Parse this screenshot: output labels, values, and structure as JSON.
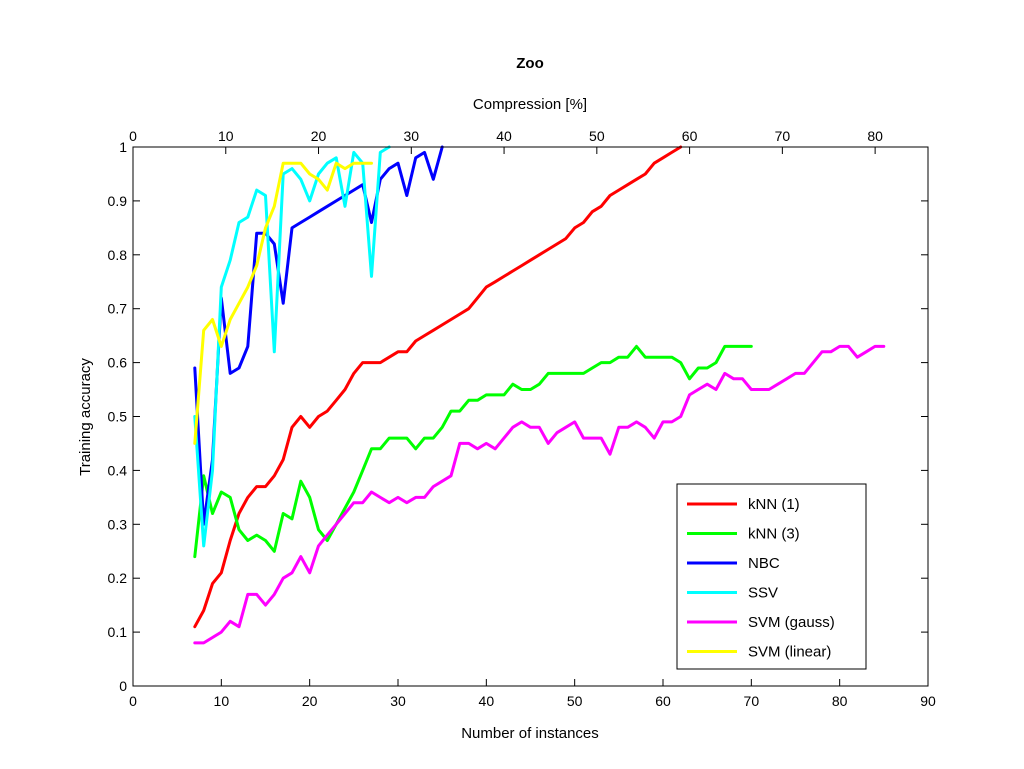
{
  "chart_data": {
    "type": "line",
    "title": "Zoo",
    "xlabel": "Number of instances",
    "ylabel": "Training accuracy",
    "x2label": "Compression [%]",
    "xlim": [
      0,
      90
    ],
    "ylim": [
      0,
      1
    ],
    "x2lim": [
      0,
      85.7
    ],
    "xticks": [
      0,
      10,
      20,
      30,
      40,
      50,
      60,
      70,
      80,
      90
    ],
    "yticks": [
      0,
      0.1,
      0.2,
      0.3,
      0.4,
      0.5,
      0.6,
      0.7,
      0.8,
      0.9,
      1
    ],
    "x2ticks": [
      0,
      10,
      20,
      30,
      40,
      50,
      60,
      70,
      80
    ],
    "grid": false,
    "legend_position": "bottom-right",
    "series": [
      {
        "name": "kNN (1)",
        "color": "#ff0000",
        "x": [
          7,
          8,
          9,
          10,
          11,
          12,
          13,
          14,
          15,
          16,
          17,
          18,
          19,
          20,
          21,
          22,
          23,
          24,
          25,
          26,
          27,
          28,
          29,
          30,
          31,
          32,
          33,
          34,
          35,
          36,
          37,
          38,
          39,
          40,
          41,
          42,
          43,
          44,
          45,
          46,
          47,
          48,
          49,
          50,
          51,
          52,
          53,
          54,
          55,
          56,
          57,
          58,
          59,
          60,
          61,
          62
        ],
        "y": [
          0.11,
          0.14,
          0.19,
          0.21,
          0.27,
          0.32,
          0.35,
          0.37,
          0.37,
          0.39,
          0.42,
          0.48,
          0.5,
          0.48,
          0.5,
          0.51,
          0.53,
          0.55,
          0.58,
          0.6,
          0.6,
          0.6,
          0.61,
          0.62,
          0.62,
          0.64,
          0.65,
          0.66,
          0.67,
          0.68,
          0.69,
          0.7,
          0.72,
          0.74,
          0.75,
          0.76,
          0.77,
          0.78,
          0.79,
          0.8,
          0.81,
          0.82,
          0.83,
          0.85,
          0.86,
          0.88,
          0.89,
          0.91,
          0.92,
          0.93,
          0.94,
          0.95,
          0.97,
          0.98,
          0.99,
          1.0
        ]
      },
      {
        "name": "kNN (3)",
        "color": "#00ff00",
        "x": [
          7,
          8,
          9,
          10,
          11,
          12,
          13,
          14,
          15,
          16,
          17,
          18,
          19,
          20,
          21,
          22,
          23,
          24,
          25,
          26,
          27,
          28,
          29,
          30,
          31,
          32,
          33,
          34,
          35,
          36,
          37,
          38,
          39,
          40,
          41,
          42,
          43,
          44,
          45,
          46,
          47,
          48,
          49,
          50,
          51,
          52,
          53,
          54,
          55,
          56,
          57,
          58,
          59,
          60,
          61,
          62,
          63,
          64,
          65,
          66,
          67,
          68,
          69,
          70
        ],
        "y": [
          0.24,
          0.39,
          0.32,
          0.36,
          0.35,
          0.29,
          0.27,
          0.28,
          0.27,
          0.25,
          0.32,
          0.31,
          0.38,
          0.35,
          0.29,
          0.27,
          0.3,
          0.33,
          0.36,
          0.4,
          0.44,
          0.44,
          0.46,
          0.46,
          0.46,
          0.44,
          0.46,
          0.46,
          0.48,
          0.51,
          0.51,
          0.53,
          0.53,
          0.54,
          0.54,
          0.54,
          0.56,
          0.55,
          0.55,
          0.56,
          0.58,
          0.58,
          0.58,
          0.58,
          0.58,
          0.59,
          0.6,
          0.6,
          0.61,
          0.61,
          0.63,
          0.61,
          0.61,
          0.61,
          0.61,
          0.6,
          0.57,
          0.59,
          0.59,
          0.6,
          0.63,
          0.63,
          0.63,
          0.63
        ]
      },
      {
        "name": "NBC",
        "color": "#0000ff",
        "x": [
          7,
          8,
          9,
          10,
          11,
          12,
          13,
          14,
          15,
          16,
          17,
          18,
          19,
          20,
          21,
          22,
          23,
          24,
          25,
          26,
          27,
          28,
          29,
          30,
          31,
          32,
          33,
          34,
          35
        ],
        "y": [
          0.59,
          0.3,
          0.42,
          0.72,
          0.58,
          0.59,
          0.63,
          0.84,
          0.84,
          0.82,
          0.71,
          0.85,
          0.86,
          0.87,
          0.88,
          0.89,
          0.9,
          0.91,
          0.92,
          0.93,
          0.86,
          0.94,
          0.96,
          0.97,
          0.91,
          0.98,
          0.99,
          0.94,
          1.0
        ]
      },
      {
        "name": "SSV",
        "color": "#00ffff",
        "x": [
          7,
          8,
          9,
          10,
          11,
          12,
          13,
          14,
          15,
          16,
          17,
          18,
          19,
          20,
          21,
          22,
          23,
          24,
          25,
          26,
          27,
          28,
          29
        ],
        "y": [
          0.5,
          0.26,
          0.4,
          0.74,
          0.79,
          0.86,
          0.87,
          0.92,
          0.91,
          0.62,
          0.95,
          0.96,
          0.94,
          0.9,
          0.95,
          0.97,
          0.98,
          0.89,
          0.99,
          0.97,
          0.76,
          0.99,
          1.0
        ]
      },
      {
        "name": "SVM (gauss)",
        "color": "#ff00ff",
        "x": [
          7,
          8,
          9,
          10,
          11,
          12,
          13,
          14,
          15,
          16,
          17,
          18,
          19,
          20,
          21,
          22,
          23,
          24,
          25,
          26,
          27,
          28,
          29,
          30,
          31,
          32,
          33,
          34,
          35,
          36,
          37,
          38,
          39,
          40,
          41,
          42,
          43,
          44,
          45,
          46,
          47,
          48,
          49,
          50,
          51,
          52,
          53,
          54,
          55,
          56,
          57,
          58,
          59,
          60,
          61,
          62,
          63,
          64,
          65,
          66,
          67,
          68,
          69,
          70,
          71,
          72,
          73,
          74,
          75,
          76,
          77,
          78,
          79,
          80,
          81,
          82,
          83,
          84,
          85
        ],
        "y": [
          0.08,
          0.08,
          0.09,
          0.1,
          0.12,
          0.11,
          0.17,
          0.17,
          0.15,
          0.17,
          0.2,
          0.21,
          0.24,
          0.21,
          0.26,
          0.28,
          0.3,
          0.32,
          0.34,
          0.34,
          0.36,
          0.35,
          0.34,
          0.35,
          0.34,
          0.35,
          0.35,
          0.37,
          0.38,
          0.39,
          0.45,
          0.45,
          0.44,
          0.45,
          0.44,
          0.46,
          0.48,
          0.49,
          0.48,
          0.48,
          0.45,
          0.47,
          0.48,
          0.49,
          0.46,
          0.46,
          0.46,
          0.43,
          0.48,
          0.48,
          0.49,
          0.48,
          0.46,
          0.49,
          0.49,
          0.5,
          0.54,
          0.55,
          0.56,
          0.55,
          0.58,
          0.57,
          0.57,
          0.55,
          0.55,
          0.55,
          0.56,
          0.57,
          0.58,
          0.58,
          0.6,
          0.62,
          0.62,
          0.63,
          0.63,
          0.61,
          0.62,
          0.63,
          0.63
        ]
      },
      {
        "name": "SVM (linear)",
        "color": "#ffff00",
        "x": [
          7,
          8,
          9,
          10,
          11,
          12,
          13,
          14,
          15,
          16,
          17,
          18,
          19,
          20,
          21,
          22,
          23,
          24,
          25,
          26,
          27
        ],
        "y": [
          0.45,
          0.66,
          0.68,
          0.63,
          0.68,
          0.71,
          0.74,
          0.78,
          0.85,
          0.89,
          0.97,
          0.97,
          0.97,
          0.95,
          0.94,
          0.92,
          0.97,
          0.96,
          0.97,
          0.97,
          0.97
        ]
      }
    ]
  }
}
